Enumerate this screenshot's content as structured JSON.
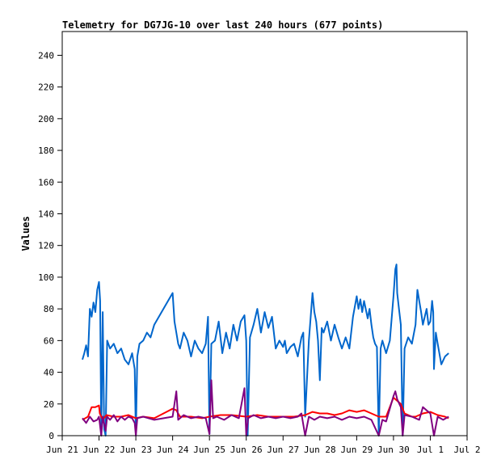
{
  "chart_data": {
    "type": "line",
    "title": "Telemetry for DG7JG-10 over last 240 hours (677 points)",
    "ylabel": "Values",
    "xlabel": "",
    "ylim": [
      0,
      255
    ],
    "yticks": [
      0,
      20,
      40,
      60,
      80,
      100,
      120,
      140,
      160,
      180,
      200,
      220,
      240
    ],
    "xlim": [
      0,
      11
    ],
    "xticks": [
      {
        "label": "Jun 21",
        "x": 0
      },
      {
        "label": "Jun 22",
        "x": 1
      },
      {
        "label": "Jun 23",
        "x": 2
      },
      {
        "label": "Jun 24",
        "x": 3
      },
      {
        "label": "Jun 25",
        "x": 4
      },
      {
        "label": "Jun 26",
        "x": 5
      },
      {
        "label": "Jun 27",
        "x": 6
      },
      {
        "label": "Jun 28",
        "x": 7
      },
      {
        "label": "Jun 29",
        "x": 8
      },
      {
        "label": "Jun 30",
        "x": 9
      },
      {
        "label": "Jul 1",
        "x": 10
      },
      {
        "label": "Jul 2",
        "x": 11
      }
    ],
    "grid": false,
    "colors": {
      "blue": "#0066cc",
      "red": "#ff0000",
      "purple": "#800080",
      "black": "#000000"
    },
    "series": [
      {
        "color": "#0066cc",
        "points": [
          [
            0.55,
            48
          ],
          [
            0.6,
            52
          ],
          [
            0.65,
            57
          ],
          [
            0.7,
            50
          ],
          [
            0.75,
            80
          ],
          [
            0.8,
            75
          ],
          [
            0.85,
            84
          ],
          [
            0.9,
            78
          ],
          [
            0.95,
            92
          ],
          [
            1.0,
            97
          ],
          [
            1.03,
            85
          ],
          [
            1.06,
            0
          ],
          [
            1.1,
            78
          ],
          [
            1.14,
            4
          ],
          [
            1.18,
            0
          ],
          [
            1.22,
            60
          ],
          [
            1.3,
            55
          ],
          [
            1.4,
            58
          ],
          [
            1.5,
            52
          ],
          [
            1.6,
            55
          ],
          [
            1.7,
            48
          ],
          [
            1.8,
            45
          ],
          [
            1.9,
            52
          ],
          [
            1.97,
            42
          ],
          [
            2.0,
            0
          ],
          [
            2.04,
            50
          ],
          [
            2.1,
            58
          ],
          [
            2.2,
            60
          ],
          [
            2.3,
            65
          ],
          [
            2.4,
            62
          ],
          [
            2.5,
            70
          ],
          [
            3.0,
            90
          ],
          [
            3.05,
            72
          ],
          [
            3.1,
            65
          ],
          [
            3.15,
            58
          ],
          [
            3.2,
            55
          ],
          [
            3.3,
            65
          ],
          [
            3.4,
            60
          ],
          [
            3.5,
            50
          ],
          [
            3.6,
            60
          ],
          [
            3.7,
            55
          ],
          [
            3.8,
            52
          ],
          [
            3.9,
            58
          ],
          [
            3.96,
            75
          ],
          [
            4.0,
            1
          ],
          [
            4.05,
            58
          ],
          [
            4.15,
            60
          ],
          [
            4.25,
            72
          ],
          [
            4.35,
            52
          ],
          [
            4.45,
            65
          ],
          [
            4.55,
            55
          ],
          [
            4.65,
            70
          ],
          [
            4.75,
            60
          ],
          [
            4.85,
            72
          ],
          [
            4.95,
            76
          ],
          [
            5.0,
            60
          ],
          [
            5.04,
            0
          ],
          [
            5.1,
            62
          ],
          [
            5.2,
            70
          ],
          [
            5.3,
            80
          ],
          [
            5.4,
            65
          ],
          [
            5.5,
            78
          ],
          [
            5.6,
            68
          ],
          [
            5.7,
            75
          ],
          [
            5.8,
            55
          ],
          [
            5.9,
            60
          ],
          [
            6.0,
            56
          ],
          [
            6.05,
            60
          ],
          [
            6.1,
            52
          ],
          [
            6.2,
            56
          ],
          [
            6.3,
            58
          ],
          [
            6.4,
            50
          ],
          [
            6.5,
            62
          ],
          [
            6.55,
            65
          ],
          [
            6.6,
            12
          ],
          [
            6.7,
            60
          ],
          [
            6.8,
            90
          ],
          [
            6.85,
            78
          ],
          [
            6.9,
            72
          ],
          [
            6.95,
            60
          ],
          [
            7.0,
            35
          ],
          [
            7.05,
            68
          ],
          [
            7.1,
            65
          ],
          [
            7.2,
            72
          ],
          [
            7.3,
            60
          ],
          [
            7.4,
            70
          ],
          [
            7.5,
            62
          ],
          [
            7.6,
            55
          ],
          [
            7.7,
            62
          ],
          [
            7.8,
            55
          ],
          [
            7.9,
            75
          ],
          [
            8.0,
            88
          ],
          [
            8.05,
            80
          ],
          [
            8.1,
            86
          ],
          [
            8.15,
            78
          ],
          [
            8.2,
            85
          ],
          [
            8.3,
            74
          ],
          [
            8.35,
            80
          ],
          [
            8.4,
            70
          ],
          [
            8.45,
            62
          ],
          [
            8.5,
            58
          ],
          [
            8.55,
            56
          ],
          [
            8.6,
            0
          ],
          [
            8.65,
            55
          ],
          [
            8.7,
            60
          ],
          [
            8.8,
            52
          ],
          [
            8.9,
            60
          ],
          [
            9.0,
            88
          ],
          [
            9.05,
            105
          ],
          [
            9.08,
            108
          ],
          [
            9.1,
            90
          ],
          [
            9.15,
            80
          ],
          [
            9.2,
            70
          ],
          [
            9.25,
            0
          ],
          [
            9.3,
            55
          ],
          [
            9.4,
            62
          ],
          [
            9.5,
            58
          ],
          [
            9.6,
            70
          ],
          [
            9.65,
            92
          ],
          [
            9.7,
            85
          ],
          [
            9.75,
            78
          ],
          [
            9.8,
            70
          ],
          [
            9.85,
            75
          ],
          [
            9.9,
            80
          ],
          [
            9.95,
            70
          ],
          [
            10.0,
            72
          ],
          [
            10.05,
            85
          ],
          [
            10.08,
            78
          ],
          [
            10.1,
            42
          ],
          [
            10.15,
            65
          ],
          [
            10.2,
            58
          ],
          [
            10.3,
            45
          ],
          [
            10.4,
            50
          ],
          [
            10.5,
            52
          ]
        ]
      },
      {
        "color": "#ff0000",
        "points": [
          [
            0.55,
            10
          ],
          [
            0.7,
            12
          ],
          [
            0.8,
            18
          ],
          [
            0.9,
            18
          ],
          [
            1.0,
            19
          ],
          [
            1.02,
            14
          ],
          [
            1.1,
            10
          ],
          [
            1.2,
            13
          ],
          [
            1.4,
            12
          ],
          [
            1.6,
            12
          ],
          [
            1.8,
            13
          ],
          [
            2.0,
            11
          ],
          [
            2.2,
            12
          ],
          [
            2.5,
            11
          ],
          [
            3.0,
            17
          ],
          [
            3.1,
            16
          ],
          [
            3.2,
            12
          ],
          [
            3.5,
            12
          ],
          [
            3.8,
            11
          ],
          [
            4.0,
            12
          ],
          [
            4.3,
            13
          ],
          [
            4.6,
            13
          ],
          [
            5.0,
            12
          ],
          [
            5.3,
            13
          ],
          [
            5.6,
            12
          ],
          [
            6.0,
            12
          ],
          [
            6.3,
            12
          ],
          [
            6.6,
            13
          ],
          [
            6.8,
            15
          ],
          [
            7.0,
            14
          ],
          [
            7.2,
            14
          ],
          [
            7.4,
            13
          ],
          [
            7.6,
            14
          ],
          [
            7.8,
            16
          ],
          [
            8.0,
            15
          ],
          [
            8.2,
            16
          ],
          [
            8.4,
            14
          ],
          [
            8.5,
            13
          ],
          [
            8.6,
            12
          ],
          [
            8.8,
            12
          ],
          [
            9.0,
            24
          ],
          [
            9.1,
            22
          ],
          [
            9.2,
            20
          ],
          [
            9.3,
            14
          ],
          [
            9.5,
            12
          ],
          [
            9.6,
            12
          ],
          [
            9.8,
            14
          ],
          [
            10.0,
            15
          ],
          [
            10.2,
            13
          ],
          [
            10.4,
            12
          ],
          [
            10.5,
            11
          ]
        ]
      },
      {
        "color": "#800080",
        "points": [
          [
            0.55,
            11
          ],
          [
            0.65,
            8
          ],
          [
            0.75,
            12
          ],
          [
            0.85,
            9
          ],
          [
            0.95,
            10
          ],
          [
            1.0,
            12
          ],
          [
            1.06,
            0
          ],
          [
            1.1,
            12
          ],
          [
            1.18,
            3
          ],
          [
            1.22,
            12
          ],
          [
            1.3,
            10
          ],
          [
            1.4,
            13
          ],
          [
            1.5,
            9
          ],
          [
            1.6,
            12
          ],
          [
            1.7,
            10
          ],
          [
            1.8,
            12
          ],
          [
            1.9,
            11
          ],
          [
            1.97,
            8
          ],
          [
            2.0,
            0
          ],
          [
            2.04,
            11
          ],
          [
            2.2,
            12
          ],
          [
            2.5,
            10
          ],
          [
            3.0,
            12
          ],
          [
            3.1,
            28
          ],
          [
            3.15,
            10
          ],
          [
            3.3,
            13
          ],
          [
            3.5,
            11
          ],
          [
            3.7,
            12
          ],
          [
            3.9,
            11
          ],
          [
            4.0,
            1
          ],
          [
            4.05,
            35
          ],
          [
            4.1,
            11
          ],
          [
            4.2,
            12
          ],
          [
            4.4,
            10
          ],
          [
            4.6,
            13
          ],
          [
            4.8,
            11
          ],
          [
            4.95,
            30
          ],
          [
            5.0,
            0
          ],
          [
            5.05,
            11
          ],
          [
            5.2,
            13
          ],
          [
            5.4,
            11
          ],
          [
            5.6,
            12
          ],
          [
            5.8,
            11
          ],
          [
            6.0,
            12
          ],
          [
            6.2,
            11
          ],
          [
            6.4,
            12
          ],
          [
            6.5,
            14
          ],
          [
            6.6,
            0
          ],
          [
            6.7,
            12
          ],
          [
            6.85,
            10
          ],
          [
            7.0,
            12
          ],
          [
            7.2,
            11
          ],
          [
            7.4,
            12
          ],
          [
            7.6,
            10
          ],
          [
            7.8,
            12
          ],
          [
            8.0,
            11
          ],
          [
            8.2,
            12
          ],
          [
            8.4,
            10
          ],
          [
            8.6,
            0
          ],
          [
            8.7,
            10
          ],
          [
            8.8,
            9
          ],
          [
            9.0,
            25
          ],
          [
            9.05,
            28
          ],
          [
            9.1,
            23
          ],
          [
            9.2,
            18
          ],
          [
            9.25,
            0
          ],
          [
            9.3,
            13
          ],
          [
            9.5,
            12
          ],
          [
            9.7,
            10
          ],
          [
            9.8,
            18
          ],
          [
            9.9,
            16
          ],
          [
            10.0,
            14
          ],
          [
            10.1,
            0
          ],
          [
            10.2,
            12
          ],
          [
            10.35,
            10
          ],
          [
            10.5,
            12
          ]
        ]
      },
      {
        "color": "#000000",
        "points": [
          [
            0.55,
            0
          ],
          [
            10.5,
            0
          ]
        ]
      }
    ]
  }
}
